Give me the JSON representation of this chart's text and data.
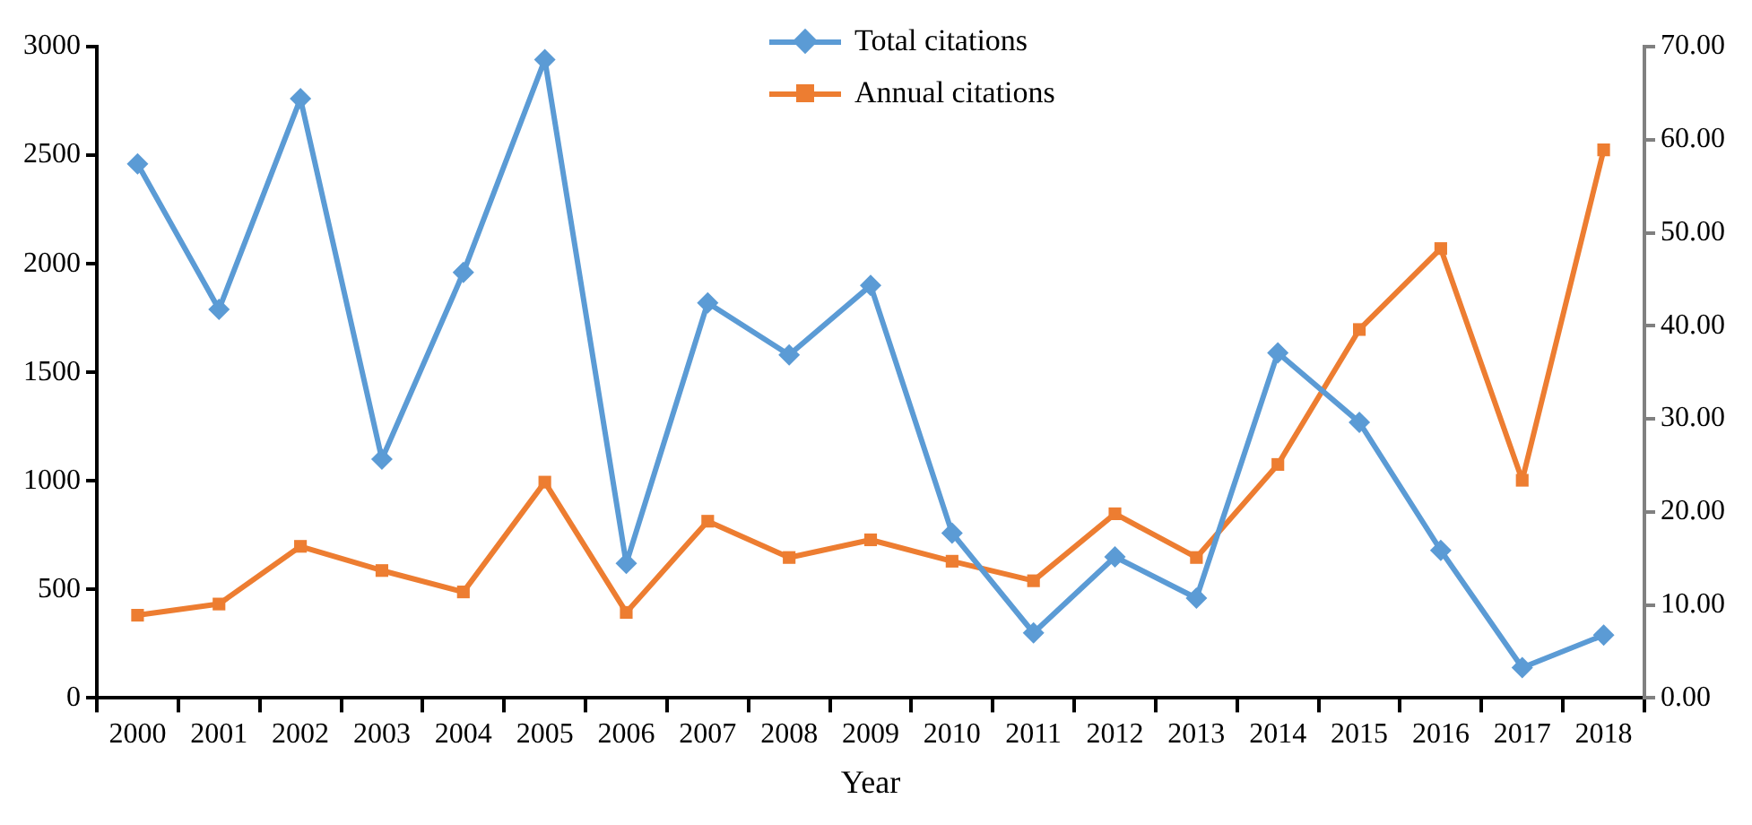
{
  "chart_data": {
    "type": "line",
    "xlabel": "Year",
    "legend": "top",
    "categories": [
      "2000",
      "2001",
      "2002",
      "2003",
      "2004",
      "2005",
      "2006",
      "2007",
      "2008",
      "2009",
      "2010",
      "2011",
      "2012",
      "2013",
      "2014",
      "2015",
      "2016",
      "2017",
      "2018"
    ],
    "series": [
      {
        "name": "Total citations",
        "color": "#5b9bd5",
        "marker": "diamond",
        "values": [
          2460,
          1790,
          2760,
          1100,
          1960,
          2940,
          620,
          1820,
          1580,
          1900,
          760,
          300,
          650,
          460,
          1590,
          1270,
          680,
          140,
          290
        ]
      },
      {
        "name": "Annual citations",
        "color": "#ed7d31",
        "marker": "square",
        "axis": "y2",
        "values": [
          8.9,
          10.1,
          16.3,
          13.7,
          11.4,
          23.2,
          9.2,
          19.0,
          15.1,
          17.0,
          14.7,
          12.6,
          19.8,
          15.1,
          25.1,
          39.6,
          48.3,
          23.4,
          58.9
        ]
      }
    ],
    "ylim": [
      0,
      3000
    ],
    "yticks": [
      0,
      500,
      1000,
      1500,
      2000,
      2500,
      3000
    ],
    "y2lim": [
      0,
      70
    ],
    "y2ticks": [
      {
        "value": 0,
        "label": "0.00"
      },
      {
        "value": 10,
        "label": "10.00"
      },
      {
        "value": 20,
        "label": "20.00"
      },
      {
        "value": 30,
        "label": "30.00"
      },
      {
        "value": 40,
        "label": "40.00"
      },
      {
        "value": 50,
        "label": "50.00"
      },
      {
        "value": 60,
        "label": "60.00"
      },
      {
        "value": 70,
        "label": "70.00"
      }
    ],
    "grid": false
  }
}
